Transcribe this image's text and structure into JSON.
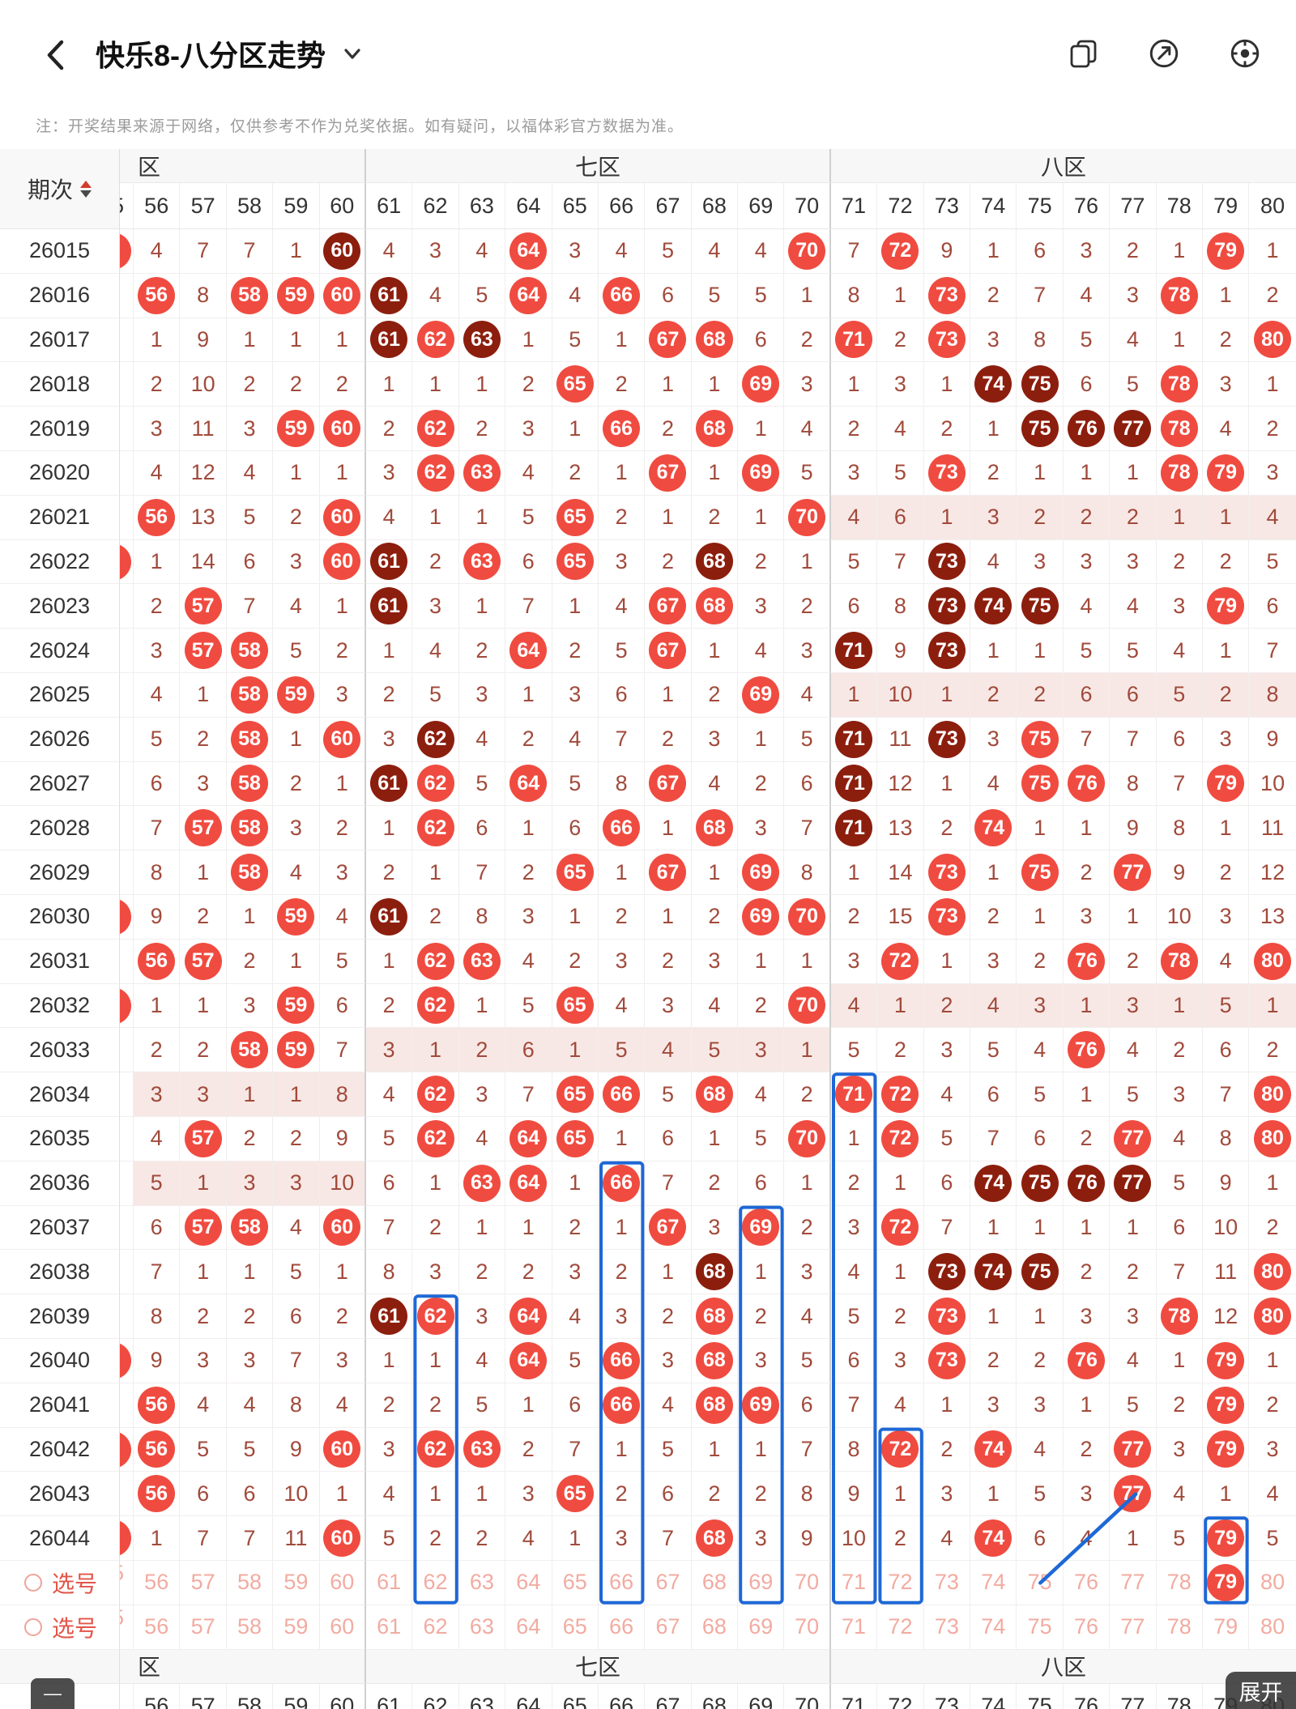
{
  "topbar": {
    "title": "快乐8-八分区走势",
    "icons": [
      "back-icon",
      "title-dropdown-icon",
      "card-switch-icon",
      "share-icon",
      "settings-icon"
    ]
  },
  "note": "注：开奖结果来源于网络，仅供参考不作为兑奖依据。如有疑问，以福体彩官方数据为准。",
  "buttons": {
    "collapse": "—",
    "expand": "展开"
  },
  "colors": {
    "ball_bright": "#f04b40",
    "ball_dark": "#8c1e0e",
    "annotation_blue": "#1e68d6",
    "miss_text": "#a14a3b"
  },
  "table": {
    "period_header": "期次",
    "zone_headers": [
      "区",
      "七区",
      "八区"
    ],
    "columns": [
      "56",
      "57",
      "58",
      "59",
      "60",
      "61",
      "62",
      "63",
      "64",
      "65",
      "66",
      "67",
      "68",
      "69",
      "70",
      "71",
      "72",
      "73",
      "74",
      "75",
      "76",
      "77",
      "78",
      "79",
      "80"
    ],
    "rows": [
      {
        "period": "26015",
        "sliver": true,
        "cells": [
          "4",
          "7",
          "7",
          "1",
          "D60",
          "4",
          "3",
          "4",
          "B64",
          "3",
          "4",
          "5",
          "4",
          "4",
          "B70",
          "7",
          "B72",
          "9",
          "1",
          "6",
          "3",
          "2",
          "1",
          "B79",
          "1"
        ]
      },
      {
        "period": "26016",
        "cells": [
          "B56",
          "8",
          "B58",
          "B59",
          "B60",
          "D61",
          "4",
          "5",
          "B64",
          "4",
          "B66",
          "6",
          "5",
          "5",
          "1",
          "8",
          "1",
          "B73",
          "2",
          "7",
          "4",
          "3",
          "B78",
          "1",
          "2"
        ]
      },
      {
        "period": "26017",
        "cells": [
          "1",
          "9",
          "1",
          "1",
          "1",
          "D61",
          "B62",
          "D63",
          "1",
          "5",
          "1",
          "B67",
          "B68",
          "6",
          "2",
          "B71",
          "2",
          "B73",
          "3",
          "8",
          "5",
          "4",
          "1",
          "2",
          "B80"
        ]
      },
      {
        "period": "26018",
        "cells": [
          "2",
          "10",
          "2",
          "2",
          "2",
          "1",
          "1",
          "1",
          "2",
          "B65",
          "2",
          "1",
          "1",
          "B69",
          "3",
          "1",
          "3",
          "1",
          "D74",
          "D75",
          "6",
          "5",
          "B78",
          "3",
          "1"
        ]
      },
      {
        "period": "26019",
        "cells": [
          "3",
          "11",
          "3",
          "B59",
          "B60",
          "2",
          "B62",
          "2",
          "3",
          "1",
          "B66",
          "2",
          "B68",
          "1",
          "4",
          "2",
          "4",
          "2",
          "1",
          "D75",
          "D76",
          "D77",
          "B78",
          "4",
          "2"
        ]
      },
      {
        "period": "26020",
        "cells": [
          "4",
          "12",
          "4",
          "1",
          "1",
          "3",
          "B62",
          "B63",
          "4",
          "2",
          "1",
          "B67",
          "1",
          "B69",
          "5",
          "3",
          "5",
          "B73",
          "2",
          "1",
          "1",
          "1",
          "B78",
          "B79",
          "3"
        ]
      },
      {
        "period": "26021",
        "pink": [
          "z3"
        ],
        "cells": [
          "B56",
          "13",
          "5",
          "2",
          "B60",
          "4",
          "1",
          "1",
          "5",
          "B65",
          "2",
          "1",
          "2",
          "1",
          "B70",
          "4",
          "6",
          "1",
          "3",
          "2",
          "2",
          "2",
          "1",
          "1",
          "4"
        ]
      },
      {
        "period": "26022",
        "sliver": true,
        "cells": [
          "1",
          "14",
          "6",
          "3",
          "B60",
          "D61",
          "2",
          "B63",
          "6",
          "B65",
          "3",
          "2",
          "D68",
          "2",
          "1",
          "5",
          "7",
          "D73",
          "4",
          "3",
          "3",
          "3",
          "2",
          "2",
          "5"
        ]
      },
      {
        "period": "26023",
        "cells": [
          "2",
          "B57",
          "7",
          "4",
          "1",
          "D61",
          "3",
          "1",
          "7",
          "1",
          "4",
          "B67",
          "B68",
          "3",
          "2",
          "6",
          "8",
          "D73",
          "D74",
          "D75",
          "4",
          "4",
          "3",
          "B79",
          "6"
        ]
      },
      {
        "period": "26024",
        "cells": [
          "3",
          "B57",
          "B58",
          "5",
          "2",
          "1",
          "4",
          "2",
          "B64",
          "2",
          "5",
          "B67",
          "1",
          "4",
          "3",
          "D71",
          "9",
          "D73",
          "1",
          "1",
          "5",
          "5",
          "4",
          "1",
          "7"
        ]
      },
      {
        "period": "26025",
        "pink": [
          "z3"
        ],
        "cells": [
          "4",
          "1",
          "B58",
          "B59",
          "3",
          "2",
          "5",
          "3",
          "1",
          "3",
          "6",
          "1",
          "2",
          "B69",
          "4",
          "1",
          "10",
          "1",
          "2",
          "2",
          "6",
          "6",
          "5",
          "2",
          "8"
        ]
      },
      {
        "period": "26026",
        "cells": [
          "5",
          "2",
          "B58",
          "1",
          "B60",
          "3",
          "D62",
          "4",
          "2",
          "4",
          "7",
          "2",
          "3",
          "1",
          "5",
          "D71",
          "11",
          "D73",
          "3",
          "B75",
          "7",
          "7",
          "6",
          "3",
          "9"
        ]
      },
      {
        "period": "26027",
        "cells": [
          "6",
          "3",
          "B58",
          "2",
          "1",
          "D61",
          "B62",
          "5",
          "B64",
          "5",
          "8",
          "B67",
          "4",
          "2",
          "6",
          "D71",
          "12",
          "1",
          "4",
          "B75",
          "B76",
          "8",
          "7",
          "B79",
          "10"
        ]
      },
      {
        "period": "26028",
        "cells": [
          "7",
          "B57",
          "B58",
          "3",
          "2",
          "1",
          "B62",
          "6",
          "1",
          "6",
          "B66",
          "1",
          "B68",
          "3",
          "7",
          "D71",
          "13",
          "2",
          "B74",
          "1",
          "1",
          "9",
          "8",
          "1",
          "11"
        ]
      },
      {
        "period": "26029",
        "cells": [
          "8",
          "1",
          "B58",
          "4",
          "3",
          "2",
          "1",
          "7",
          "2",
          "B65",
          "1",
          "B67",
          "1",
          "B69",
          "8",
          "1",
          "14",
          "B73",
          "1",
          "B75",
          "2",
          "B77",
          "9",
          "2",
          "12"
        ]
      },
      {
        "period": "26030",
        "sliver": true,
        "cells": [
          "9",
          "2",
          "1",
          "B59",
          "4",
          "D61",
          "2",
          "8",
          "3",
          "1",
          "2",
          "1",
          "2",
          "B69",
          "B70",
          "2",
          "15",
          "B73",
          "2",
          "1",
          "3",
          "1",
          "10",
          "3",
          "13"
        ]
      },
      {
        "period": "26031",
        "cells": [
          "B56",
          "B57",
          "2",
          "1",
          "5",
          "1",
          "B62",
          "B63",
          "4",
          "2",
          "3",
          "2",
          "3",
          "1",
          "1",
          "3",
          "B72",
          "1",
          "3",
          "2",
          "B76",
          "2",
          "B78",
          "4",
          "B80"
        ]
      },
      {
        "period": "26032",
        "pink": [
          "z3"
        ],
        "sliver": true,
        "cells": [
          "1",
          "1",
          "3",
          "B59",
          "6",
          "2",
          "B62",
          "1",
          "5",
          "B65",
          "4",
          "3",
          "4",
          "2",
          "B70",
          "4",
          "1",
          "2",
          "4",
          "3",
          "1",
          "3",
          "1",
          "5",
          "1"
        ]
      },
      {
        "period": "26033",
        "pink": [
          "z2"
        ],
        "cells": [
          "2",
          "2",
          "B58",
          "B59",
          "7",
          "3",
          "1",
          "2",
          "6",
          "1",
          "5",
          "4",
          "5",
          "3",
          "1",
          "5",
          "2",
          "3",
          "5",
          "4",
          "B76",
          "4",
          "2",
          "6",
          "2"
        ]
      },
      {
        "period": "26034",
        "pink": [
          "z1"
        ],
        "cells": [
          "3",
          "3",
          "1",
          "1",
          "8",
          "4",
          "B62",
          "3",
          "7",
          "B65",
          "B66",
          "5",
          "B68",
          "4",
          "2",
          "B71",
          "B72",
          "4",
          "6",
          "5",
          "1",
          "5",
          "3",
          "7",
          "B80"
        ]
      },
      {
        "period": "26035",
        "cells": [
          "4",
          "B57",
          "2",
          "2",
          "9",
          "5",
          "B62",
          "4",
          "B64",
          "B65",
          "1",
          "6",
          "1",
          "5",
          "B70",
          "1",
          "B72",
          "5",
          "7",
          "6",
          "2",
          "B77",
          "4",
          "8",
          "B80"
        ]
      },
      {
        "period": "26036",
        "pink": [
          "z1"
        ],
        "cells": [
          "5",
          "1",
          "3",
          "3",
          "10",
          "6",
          "1",
          "B63",
          "B64",
          "1",
          "B66",
          "7",
          "2",
          "6",
          "1",
          "2",
          "1",
          "6",
          "D74",
          "D75",
          "D76",
          "D77",
          "5",
          "9",
          "1"
        ]
      },
      {
        "period": "26037",
        "cells": [
          "6",
          "B57",
          "B58",
          "4",
          "B60",
          "7",
          "2",
          "1",
          "1",
          "2",
          "1",
          "B67",
          "3",
          "B69",
          "2",
          "3",
          "B72",
          "7",
          "1",
          "1",
          "1",
          "1",
          "6",
          "10",
          "2"
        ]
      },
      {
        "period": "26038",
        "cells": [
          "7",
          "1",
          "1",
          "5",
          "1",
          "8",
          "3",
          "2",
          "2",
          "3",
          "2",
          "1",
          "D68",
          "1",
          "3",
          "4",
          "1",
          "D73",
          "D74",
          "D75",
          "2",
          "2",
          "7",
          "11",
          "B80"
        ]
      },
      {
        "period": "26039",
        "cells": [
          "8",
          "2",
          "2",
          "6",
          "2",
          "D61",
          "B62",
          "3",
          "B64",
          "4",
          "3",
          "2",
          "B68",
          "2",
          "4",
          "5",
          "2",
          "B73",
          "1",
          "1",
          "3",
          "3",
          "B78",
          "12",
          "B80"
        ]
      },
      {
        "period": "26040",
        "sliver": true,
        "cells": [
          "9",
          "3",
          "3",
          "7",
          "3",
          "1",
          "1",
          "4",
          "B64",
          "5",
          "B66",
          "3",
          "B68",
          "3",
          "5",
          "6",
          "3",
          "B73",
          "2",
          "2",
          "B76",
          "4",
          "1",
          "B79",
          "1"
        ]
      },
      {
        "period": "26041",
        "cells": [
          "B56",
          "4",
          "4",
          "8",
          "4",
          "2",
          "2",
          "5",
          "1",
          "6",
          "B66",
          "4",
          "B68",
          "B69",
          "6",
          "7",
          "4",
          "1",
          "3",
          "3",
          "1",
          "5",
          "2",
          "B79",
          "2"
        ]
      },
      {
        "period": "26042",
        "sliver": true,
        "cells": [
          "B56",
          "5",
          "5",
          "9",
          "B60",
          "3",
          "B62",
          "B63",
          "2",
          "7",
          "1",
          "5",
          "1",
          "1",
          "7",
          "8",
          "B72",
          "2",
          "B74",
          "4",
          "2",
          "B77",
          "3",
          "B79",
          "3"
        ]
      },
      {
        "period": "26043",
        "cells": [
          "B56",
          "6",
          "6",
          "10",
          "1",
          "4",
          "1",
          "1",
          "3",
          "B65",
          "2",
          "6",
          "2",
          "2",
          "8",
          "9",
          "1",
          "3",
          "1",
          "5",
          "3",
          "B77",
          "4",
          "1",
          "4"
        ]
      },
      {
        "period": "26044",
        "sliver": true,
        "cells": [
          "1",
          "7",
          "7",
          "11",
          "B60",
          "5",
          "2",
          "2",
          "4",
          "1",
          "3",
          "7",
          "B68",
          "3",
          "9",
          "10",
          "2",
          "4",
          "B74",
          "6",
          "4",
          "1",
          "5",
          "B79",
          "5"
        ]
      }
    ],
    "selection": {
      "label": "选号",
      "rows": [
        {
          "cells": [
            "56",
            "57",
            "58",
            "59",
            "60",
            "61",
            "62",
            "63",
            "64",
            "65",
            "66",
            "67",
            "68",
            "69",
            "70",
            "71",
            "72",
            "73",
            "74",
            "75",
            "76",
            "77",
            "78",
            "B79",
            "80"
          ]
        },
        {
          "cells": [
            "56",
            "57",
            "58",
            "59",
            "60",
            "61",
            "62",
            "63",
            "64",
            "65",
            "66",
            "67",
            "68",
            "69",
            "70",
            "71",
            "72",
            "73",
            "74",
            "75",
            "76",
            "77",
            "78",
            "79",
            "80"
          ]
        }
      ]
    }
  },
  "annotations": {
    "color": "#1e68d6",
    "boxes": [
      {
        "column": 62,
        "from_period": "26039"
      },
      {
        "column": 66,
        "from_period": "26036"
      },
      {
        "column": 69,
        "from_period": "26037"
      },
      {
        "column": 71,
        "from_period": "26034"
      },
      {
        "column": 72,
        "from_period": "26042"
      },
      {
        "column": 79,
        "from_period": "26044"
      }
    ],
    "line": {
      "from_column": 75,
      "from_row": "select-1",
      "to_column": 77,
      "to_period": "26043"
    }
  }
}
